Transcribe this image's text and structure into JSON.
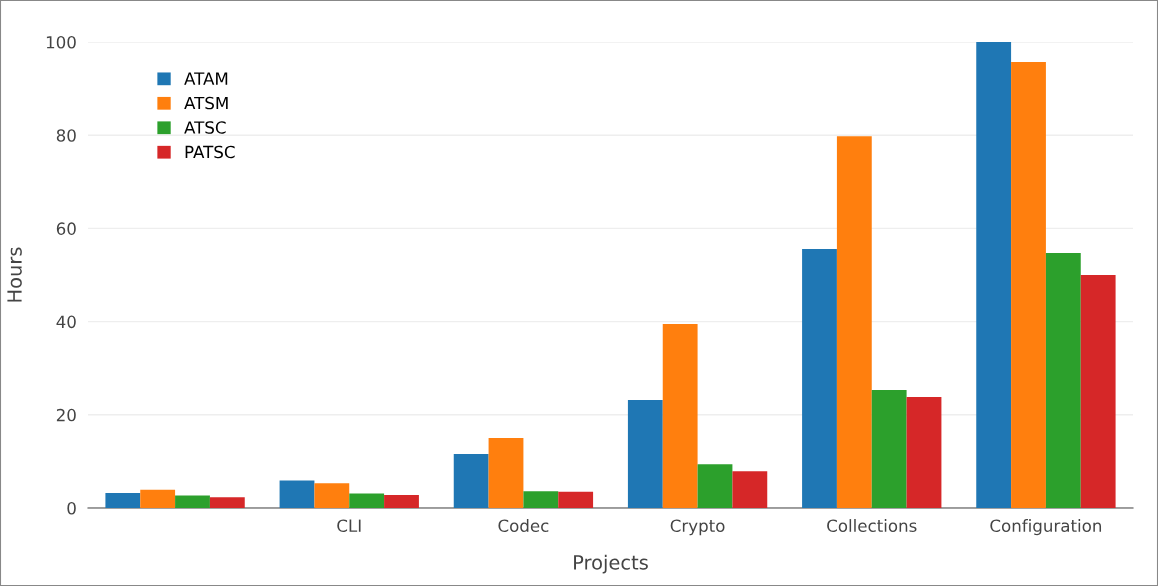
{
  "chart_data": {
    "type": "bar",
    "xlabel": "Projects",
    "ylabel": "Hours",
    "categories": [
      null,
      "CLI",
      "Codec",
      "Crypto",
      "Collections",
      "Configuration"
    ],
    "series": [
      {
        "name": "ATAM",
        "color": "#1f77b4",
        "values": [
          3.2,
          5.9,
          11.6,
          23.2,
          55.6,
          100
        ]
      },
      {
        "name": "ATSM",
        "color": "#ff7f0e",
        "values": [
          3.9,
          5.3,
          15.0,
          39.5,
          79.8,
          95.7
        ]
      },
      {
        "name": "ATSC",
        "color": "#2ca02c",
        "values": [
          2.7,
          3.1,
          3.6,
          9.4,
          25.3,
          54.7
        ]
      },
      {
        "name": "PATSC",
        "color": "#d62728",
        "values": [
          2.3,
          2.8,
          3.5,
          7.9,
          23.8,
          50.0
        ]
      }
    ],
    "ylim": [
      0,
      100
    ],
    "yticks": [
      0,
      20,
      40,
      60,
      80,
      100
    ],
    "grid": "y",
    "legend": "top left"
  }
}
